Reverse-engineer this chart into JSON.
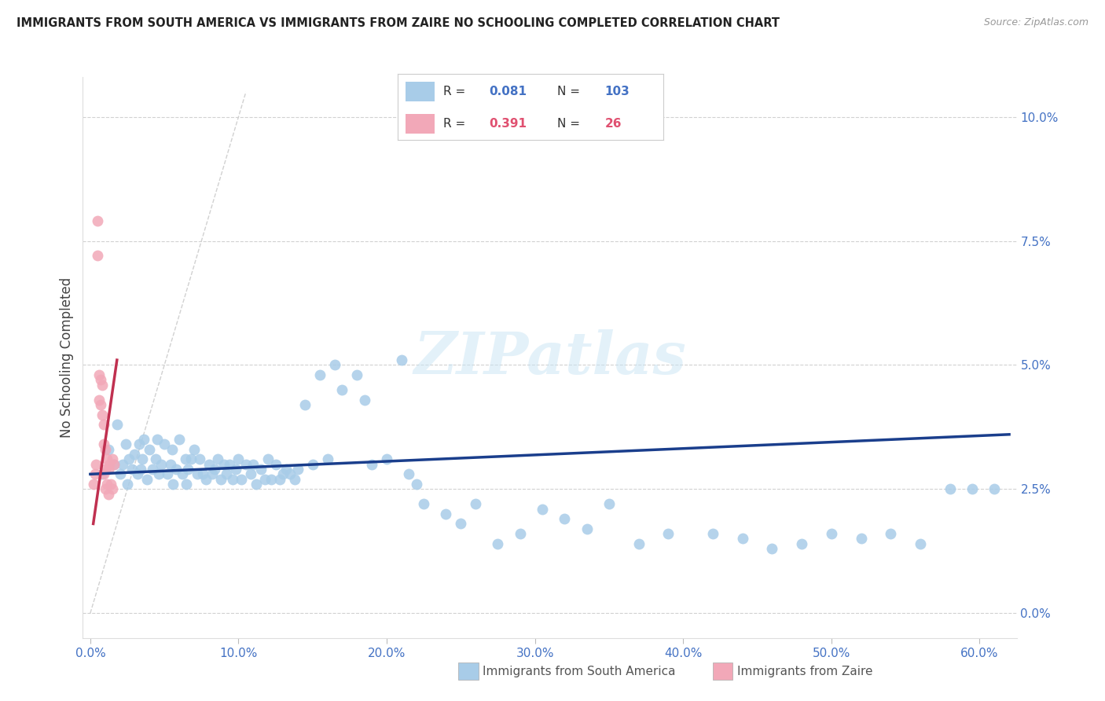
{
  "title": "IMMIGRANTS FROM SOUTH AMERICA VS IMMIGRANTS FROM ZAIRE NO SCHOOLING COMPLETED CORRELATION CHART",
  "source": "Source: ZipAtlas.com",
  "ylabel_left": "No Schooling Completed",
  "r_sa": 0.081,
  "n_sa": 103,
  "r_zaire": 0.391,
  "n_zaire": 26,
  "color_blue": "#A8CCE8",
  "color_pink": "#F2A8B8",
  "color_blue_text": "#4472C4",
  "color_pink_text": "#E05070",
  "color_trend_blue": "#1A3E8C",
  "color_trend_pink": "#C03050",
  "color_diagonal": "#CCCCCC",
  "color_grid": "#CCCCCC",
  "xlim": [
    -0.005,
    0.625
  ],
  "ylim": [
    -0.005,
    0.108
  ],
  "xticks": [
    0.0,
    0.1,
    0.2,
    0.3,
    0.4,
    0.5,
    0.6
  ],
  "yticks_right": [
    0.0,
    0.025,
    0.05,
    0.075,
    0.1
  ],
  "watermark": "ZIPatlas",
  "legend_sa": "Immigrants from South America",
  "legend_zaire": "Immigrants from Zaire",
  "sa_x": [
    0.008,
    0.012,
    0.016,
    0.018,
    0.02,
    0.022,
    0.024,
    0.025,
    0.026,
    0.028,
    0.03,
    0.032,
    0.033,
    0.034,
    0.035,
    0.036,
    0.038,
    0.04,
    0.042,
    0.044,
    0.045,
    0.046,
    0.048,
    0.05,
    0.052,
    0.054,
    0.055,
    0.056,
    0.058,
    0.06,
    0.062,
    0.064,
    0.065,
    0.066,
    0.068,
    0.07,
    0.072,
    0.074,
    0.076,
    0.078,
    0.08,
    0.082,
    0.084,
    0.086,
    0.088,
    0.09,
    0.092,
    0.094,
    0.096,
    0.098,
    0.1,
    0.102,
    0.105,
    0.108,
    0.11,
    0.112,
    0.115,
    0.118,
    0.12,
    0.122,
    0.125,
    0.128,
    0.13,
    0.132,
    0.135,
    0.138,
    0.14,
    0.145,
    0.15,
    0.155,
    0.16,
    0.165,
    0.17,
    0.18,
    0.185,
    0.19,
    0.2,
    0.21,
    0.215,
    0.22,
    0.225,
    0.24,
    0.25,
    0.26,
    0.275,
    0.29,
    0.305,
    0.32,
    0.335,
    0.35,
    0.37,
    0.39,
    0.42,
    0.44,
    0.46,
    0.48,
    0.5,
    0.52,
    0.54,
    0.56,
    0.58,
    0.595,
    0.61
  ],
  "sa_y": [
    0.028,
    0.033,
    0.03,
    0.038,
    0.028,
    0.03,
    0.034,
    0.026,
    0.031,
    0.029,
    0.032,
    0.028,
    0.034,
    0.029,
    0.031,
    0.035,
    0.027,
    0.033,
    0.029,
    0.031,
    0.035,
    0.028,
    0.03,
    0.034,
    0.028,
    0.03,
    0.033,
    0.026,
    0.029,
    0.035,
    0.028,
    0.031,
    0.026,
    0.029,
    0.031,
    0.033,
    0.028,
    0.031,
    0.028,
    0.027,
    0.03,
    0.028,
    0.029,
    0.031,
    0.027,
    0.03,
    0.028,
    0.03,
    0.027,
    0.029,
    0.031,
    0.027,
    0.03,
    0.028,
    0.03,
    0.026,
    0.029,
    0.027,
    0.031,
    0.027,
    0.03,
    0.027,
    0.028,
    0.029,
    0.028,
    0.027,
    0.029,
    0.042,
    0.03,
    0.048,
    0.031,
    0.05,
    0.045,
    0.048,
    0.043,
    0.03,
    0.031,
    0.051,
    0.028,
    0.026,
    0.022,
    0.02,
    0.018,
    0.022,
    0.014,
    0.016,
    0.021,
    0.019,
    0.017,
    0.022,
    0.014,
    0.016,
    0.016,
    0.015,
    0.013,
    0.014,
    0.016,
    0.015,
    0.016,
    0.014,
    0.025,
    0.025,
    0.025
  ],
  "zaire_x": [
    0.002,
    0.003,
    0.004,
    0.005,
    0.005,
    0.006,
    0.006,
    0.007,
    0.007,
    0.008,
    0.008,
    0.009,
    0.009,
    0.009,
    0.01,
    0.01,
    0.01,
    0.011,
    0.011,
    0.012,
    0.012,
    0.013,
    0.014,
    0.015,
    0.015,
    0.016
  ],
  "zaire_y": [
    0.026,
    0.028,
    0.03,
    0.079,
    0.072,
    0.048,
    0.043,
    0.047,
    0.042,
    0.046,
    0.04,
    0.038,
    0.034,
    0.028,
    0.033,
    0.029,
    0.025,
    0.031,
    0.026,
    0.029,
    0.024,
    0.03,
    0.026,
    0.031,
    0.025,
    0.03
  ],
  "sa_trend_x0": 0.0,
  "sa_trend_x1": 0.62,
  "sa_trend_y0": 0.028,
  "sa_trend_y1": 0.036,
  "zaire_trend_x0": 0.002,
  "zaire_trend_x1": 0.018,
  "zaire_trend_y0": 0.018,
  "zaire_trend_y1": 0.051
}
